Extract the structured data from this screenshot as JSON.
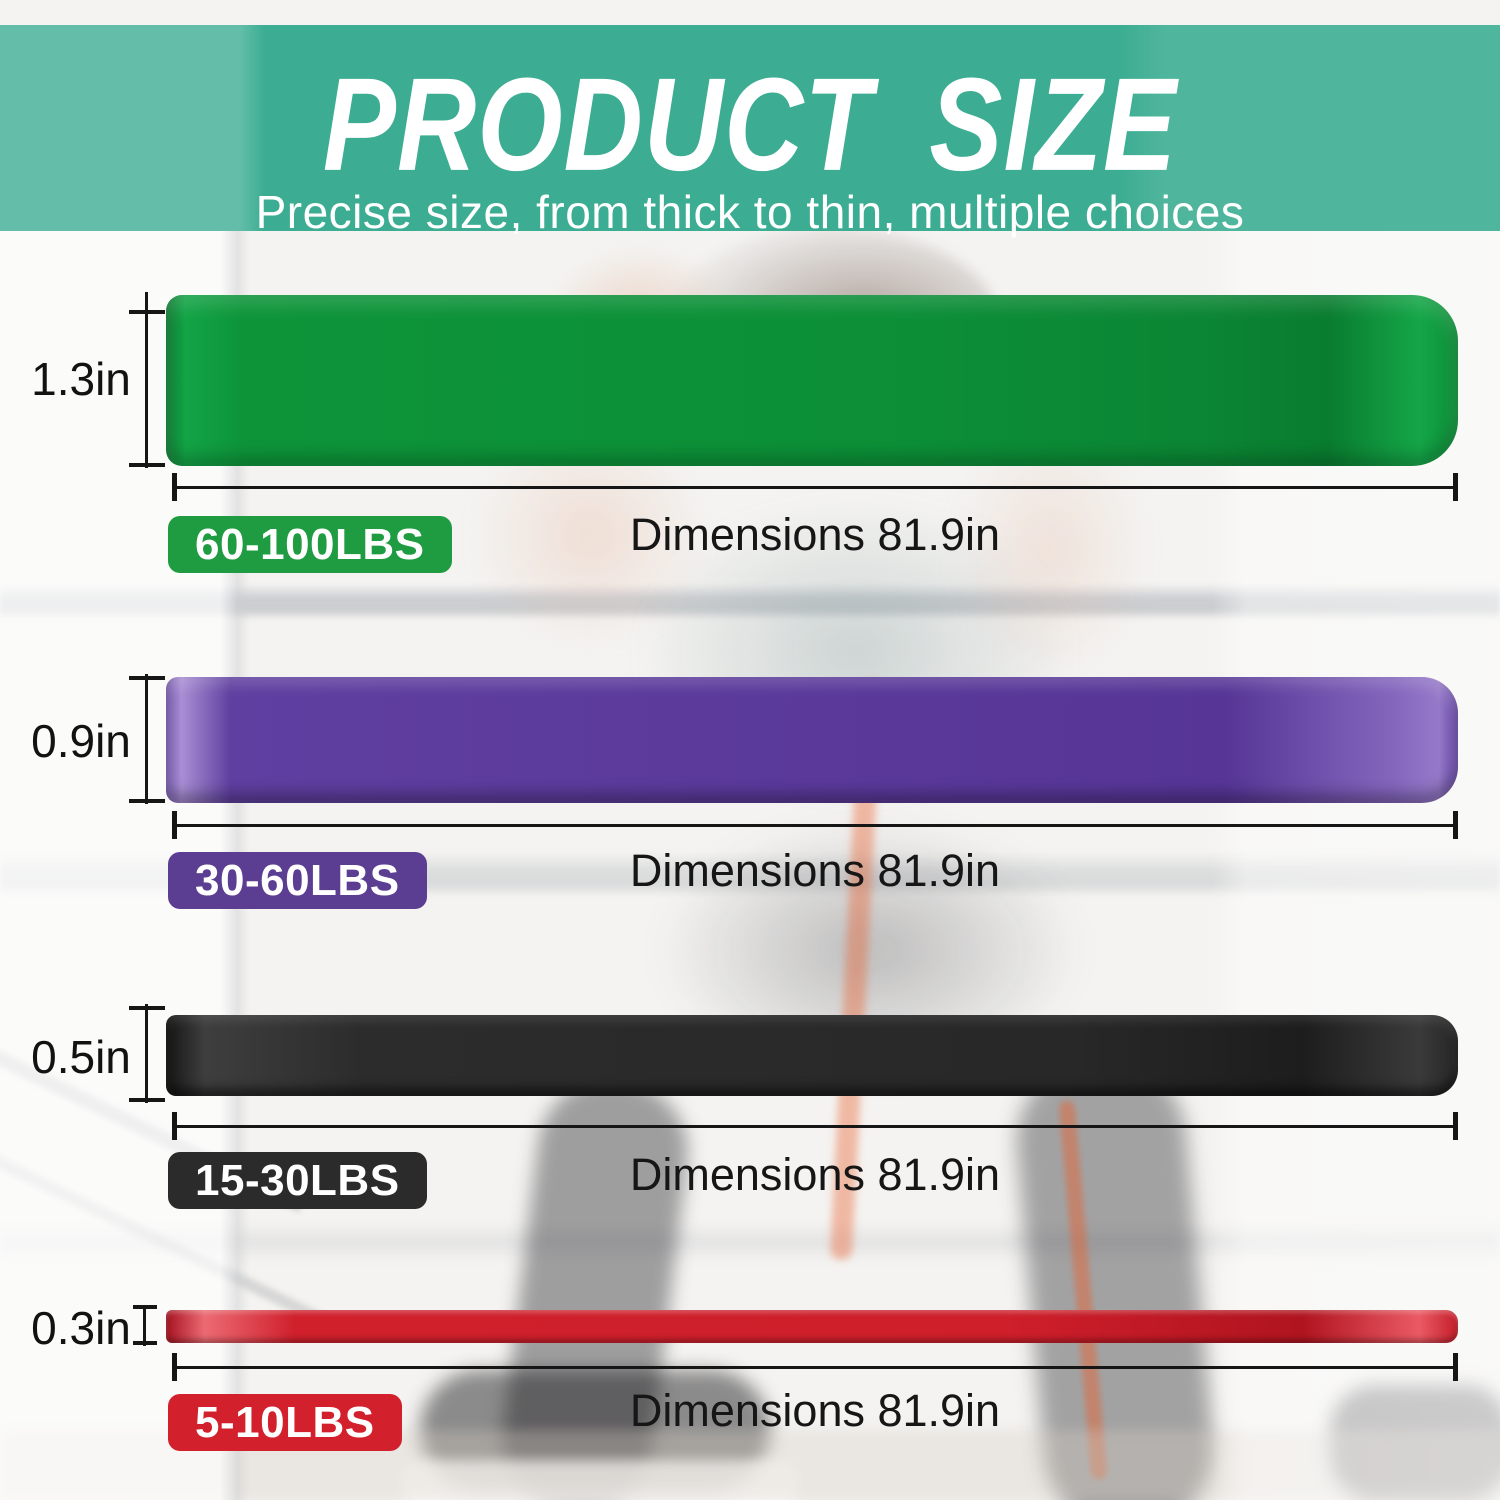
{
  "header": {
    "title": "PRODUCT SIZE",
    "subtitle": "Precise size, from thick to thin, multiple choices",
    "background_color": "#3CAD92",
    "text_color": "#FFFFFF"
  },
  "measure_line_color": "#161616",
  "bands": [
    {
      "thickness": "1.3in",
      "weight_range": "60-100LBS",
      "dimension_label": "Dimensions 81.9in",
      "band_color": "#0C8F37",
      "badge_color": "#1F9C41"
    },
    {
      "thickness": "0.9in",
      "weight_range": "30-60LBS",
      "dimension_label": "Dimensions 81.9in",
      "band_color": "#5A399A",
      "badge_color": "#5B3D92"
    },
    {
      "thickness": "0.5in",
      "weight_range": "15-30LBS",
      "dimension_label": "Dimensions 81.9in",
      "band_color": "#282828",
      "badge_color": "#2B2B2B"
    },
    {
      "thickness": "0.3in",
      "weight_range": "5-10LBS",
      "dimension_label": "Dimensions 81.9in",
      "band_color": "#CE1F2B",
      "badge_color": "#D2202C"
    }
  ]
}
